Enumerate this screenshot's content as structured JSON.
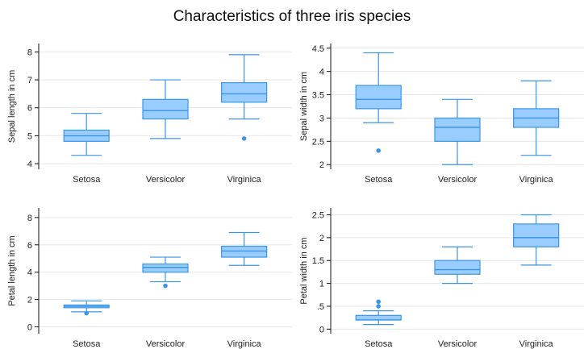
{
  "title": "Characteristics of three iris species",
  "colors": {
    "box_fill": "#99ccff",
    "box_stroke": "#3a96e8",
    "grid": "#e6e6e6",
    "axis": "#111111"
  },
  "chart_data": [
    {
      "type": "box",
      "ylabel": "Sepal length in cm",
      "categories": [
        "Setosa",
        "Versicolor",
        "Virginica"
      ],
      "ylim": [
        3.8,
        8.3
      ],
      "yticks": [
        4,
        5,
        6,
        7,
        8
      ],
      "yticklabels": [
        "4",
        "5",
        "6",
        "7",
        "8"
      ],
      "boxes": [
        {
          "min": 4.3,
          "q1": 4.8,
          "median": 5.0,
          "q3": 5.2,
          "max": 5.8,
          "outliers": []
        },
        {
          "min": 4.9,
          "q1": 5.6,
          "median": 5.9,
          "q3": 6.3,
          "max": 7.0,
          "outliers": []
        },
        {
          "min": 5.6,
          "q1": 6.2,
          "median": 6.5,
          "q3": 6.9,
          "max": 7.9,
          "outliers": [
            4.9
          ]
        }
      ]
    },
    {
      "type": "box",
      "ylabel": "Sepal width in cm",
      "categories": [
        "Setosa",
        "Versicolor",
        "Virginica"
      ],
      "ylim": [
        1.9,
        4.6
      ],
      "yticks": [
        2,
        2.5,
        3,
        3.5,
        4,
        4.5
      ],
      "yticklabels": [
        "2",
        "2.5",
        "3",
        "3.5",
        "4",
        "4.5"
      ],
      "boxes": [
        {
          "min": 2.9,
          "q1": 3.2,
          "median": 3.4,
          "q3": 3.7,
          "max": 4.4,
          "outliers": [
            2.3
          ]
        },
        {
          "min": 2.0,
          "q1": 2.5,
          "median": 2.8,
          "q3": 3.0,
          "max": 3.4,
          "outliers": []
        },
        {
          "min": 2.2,
          "q1": 2.8,
          "median": 3.0,
          "q3": 3.2,
          "max": 3.8,
          "outliers": []
        }
      ]
    },
    {
      "type": "box",
      "ylabel": "Petal length in cm",
      "categories": [
        "Setosa",
        "Versicolor",
        "Virginica"
      ],
      "ylim": [
        -0.5,
        8.7
      ],
      "yticks": [
        0,
        2,
        4,
        6,
        8
      ],
      "yticklabels": [
        "0",
        "2",
        "4",
        "6",
        "8"
      ],
      "boxes": [
        {
          "min": 1.1,
          "q1": 1.4,
          "median": 1.5,
          "q3": 1.6,
          "max": 1.9,
          "outliers": [
            1.0
          ]
        },
        {
          "min": 3.3,
          "q1": 4.0,
          "median": 4.35,
          "q3": 4.6,
          "max": 5.1,
          "outliers": [
            3.0
          ]
        },
        {
          "min": 4.5,
          "q1": 5.1,
          "median": 5.55,
          "q3": 5.9,
          "max": 6.9,
          "outliers": []
        }
      ]
    },
    {
      "type": "box",
      "ylabel": "Petal width in cm",
      "categories": [
        "Setosa",
        "Versicolor",
        "Virginica"
      ],
      "ylim": [
        -0.1,
        2.65
      ],
      "yticks": [
        0,
        0.5,
        1,
        1.5,
        2,
        2.5
      ],
      "yticklabels": [
        "0",
        ".5",
        "1",
        "1.5",
        "2",
        "2.5"
      ],
      "boxes": [
        {
          "min": 0.1,
          "q1": 0.2,
          "median": 0.2,
          "q3": 0.3,
          "max": 0.4,
          "outliers": [
            0.5,
            0.6
          ]
        },
        {
          "min": 1.0,
          "q1": 1.2,
          "median": 1.3,
          "q3": 1.5,
          "max": 1.8,
          "outliers": []
        },
        {
          "min": 1.4,
          "q1": 1.8,
          "median": 2.0,
          "q3": 2.3,
          "max": 2.5,
          "outliers": []
        }
      ]
    }
  ]
}
